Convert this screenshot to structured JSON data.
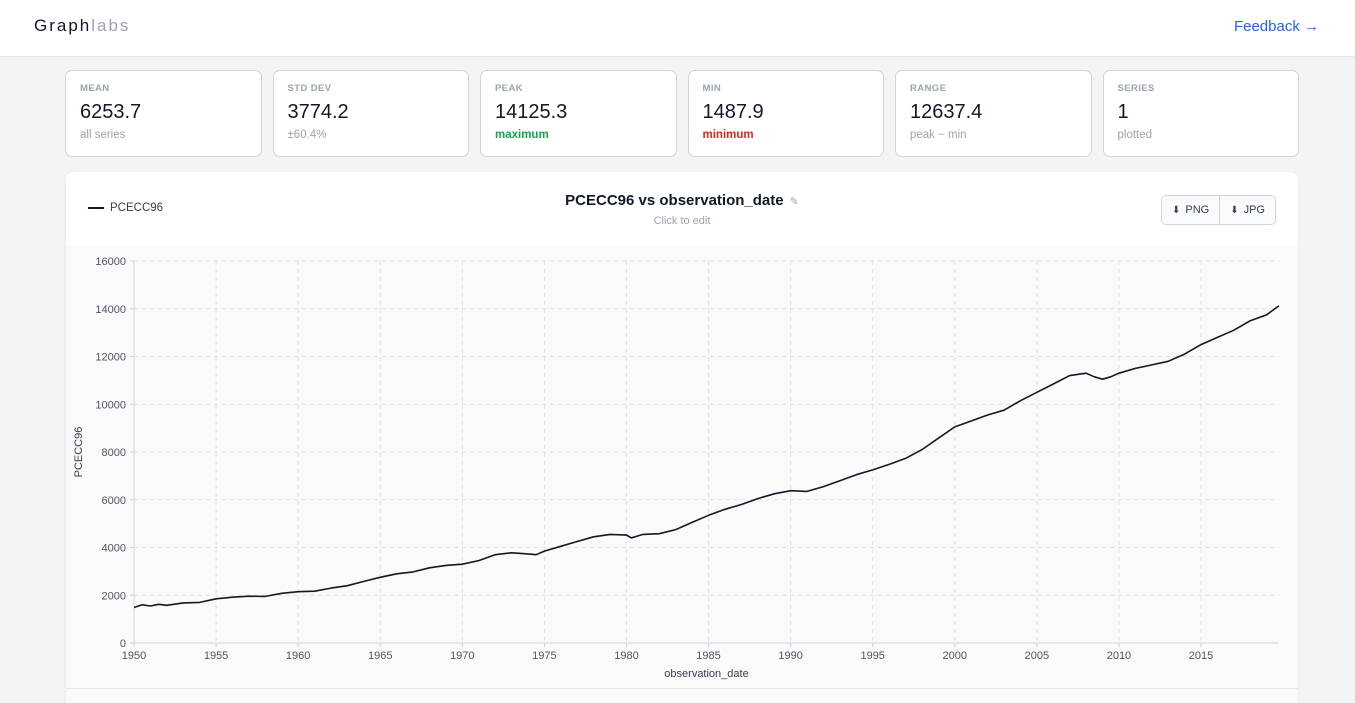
{
  "header": {
    "brand_bold": "Graph",
    "brand_light": "labs",
    "feedback_label": "Feedback →"
  },
  "stats": [
    {
      "label": "MEAN",
      "value": "6253.7",
      "sub": "all series",
      "tone": "muted"
    },
    {
      "label": "STD DEV",
      "value": "3774.2",
      "sub": "±60.4%",
      "tone": "muted"
    },
    {
      "label": "PEAK",
      "value": "14125.3",
      "sub": "maximum",
      "tone": "green"
    },
    {
      "label": "MIN",
      "value": "1487.9",
      "sub": "minimum",
      "tone": "red"
    },
    {
      "label": "RANGE",
      "value": "12637.4",
      "sub": "peak − min",
      "tone": "muted"
    },
    {
      "label": "SERIES",
      "value": "1",
      "sub": "plotted",
      "tone": "muted"
    }
  ],
  "panel": {
    "legend_label": "PCECC96",
    "title": "PCECC96 vs observation_date",
    "hint": "Click to edit",
    "png_label": "PNG",
    "jpg_label": "JPG"
  },
  "chart_data": {
    "type": "line",
    "xlabel": "observation_date",
    "ylabel": "PCECC96",
    "xlim": [
      1950,
      2019.75
    ],
    "ylim": [
      0,
      16000
    ],
    "xticks": [
      1950,
      1955,
      1960,
      1965,
      1970,
      1975,
      1980,
      1985,
      1990,
      1995,
      2000,
      2005,
      2010,
      2015
    ],
    "yticks": [
      0,
      2000,
      4000,
      6000,
      8000,
      10000,
      12000,
      14000,
      16000
    ],
    "grid": true,
    "line_color": "#111827",
    "series": [
      {
        "name": "PCECC96",
        "x": [
          1950,
          1950.5,
          1951,
          1951.5,
          1952,
          1953,
          1954,
          1955,
          1956,
          1957,
          1958,
          1959,
          1960,
          1961,
          1962,
          1963,
          1964,
          1965,
          1966,
          1967,
          1968,
          1969,
          1970,
          1971,
          1972,
          1973,
          1974,
          1974.5,
          1975,
          1976,
          1977,
          1978,
          1979,
          1980,
          1980.3,
          1981,
          1982,
          1983,
          1984,
          1985,
          1986,
          1987,
          1988,
          1989,
          1990,
          1991,
          1992,
          1993,
          1994,
          1995,
          1996,
          1997,
          1998,
          1999,
          2000,
          2001,
          2002,
          2003,
          2004,
          2005,
          2006,
          2007,
          2008,
          2008.5,
          2009,
          2009.5,
          2010,
          2011,
          2012,
          2013,
          2014,
          2015,
          2016,
          2017,
          2018,
          2019,
          2019.75
        ],
        "values": [
          1488,
          1600,
          1550,
          1620,
          1580,
          1680,
          1700,
          1850,
          1920,
          1960,
          1950,
          2080,
          2150,
          2170,
          2300,
          2400,
          2580,
          2750,
          2900,
          2980,
          3150,
          3250,
          3300,
          3450,
          3700,
          3780,
          3730,
          3700,
          3850,
          4050,
          4250,
          4450,
          4550,
          4520,
          4400,
          4550,
          4580,
          4750,
          5050,
          5350,
          5600,
          5800,
          6050,
          6250,
          6380,
          6350,
          6550,
          6800,
          7050,
          7250,
          7480,
          7730,
          8100,
          8580,
          9050,
          9300,
          9550,
          9750,
          10150,
          10500,
          10850,
          11200,
          11300,
          11150,
          11050,
          11150,
          11300,
          11500,
          11650,
          11800,
          12100,
          12500,
          12800,
          13100,
          13500,
          13750,
          14125
        ]
      }
    ]
  },
  "footer": {
    "left": "",
    "right": ""
  }
}
